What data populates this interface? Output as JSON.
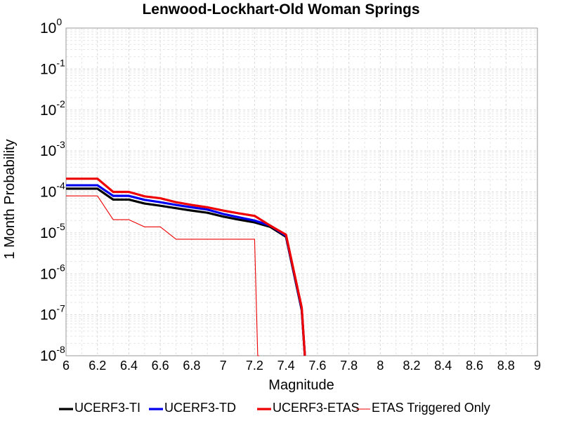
{
  "chart_data": {
    "type": "line",
    "title": "Lenwood-Lockhart-Old Woman Springs",
    "xlabel": "Magnitude",
    "ylabel": "1 Month Probability",
    "xlim": [
      6,
      9
    ],
    "ylim": [
      1e-08,
      1
    ],
    "yscale": "log",
    "grid": true,
    "legend_position": "bottom",
    "x_ticks": [
      "6",
      "6.2",
      "6.4",
      "6.6",
      "6.8",
      "7",
      "7.2",
      "7.4",
      "7.6",
      "7.8",
      "8",
      "8.2",
      "8.4",
      "8.6",
      "8.8",
      "9"
    ],
    "y_ticks": [
      {
        "base": "10",
        "exp": "0"
      },
      {
        "base": "10",
        "exp": "-1"
      },
      {
        "base": "10",
        "exp": "-2"
      },
      {
        "base": "10",
        "exp": "-3"
      },
      {
        "base": "10",
        "exp": "-4"
      },
      {
        "base": "10",
        "exp": "-5"
      },
      {
        "base": "10",
        "exp": "-6"
      },
      {
        "base": "10",
        "exp": "-7"
      },
      {
        "base": "10",
        "exp": "-8"
      }
    ],
    "series": [
      {
        "name": "UCERF3-TI",
        "color": "#000000",
        "style": "thick",
        "x": [
          6.0,
          6.2,
          6.3,
          6.4,
          6.5,
          6.6,
          6.7,
          6.8,
          6.9,
          7.0,
          7.1,
          7.2,
          7.3,
          7.4,
          7.5,
          7.52
        ],
        "y": [
          0.00012,
          0.00012,
          6.5e-05,
          6.5e-05,
          5.2e-05,
          4.6e-05,
          4e-05,
          3.5e-05,
          3.1e-05,
          2.5e-05,
          2.1e-05,
          1.8e-05,
          1.4e-05,
          8e-06,
          1.3e-07,
          1e-08
        ]
      },
      {
        "name": "UCERF3-TD",
        "color": "#0000ee",
        "style": "thick",
        "x": [
          6.0,
          6.2,
          6.3,
          6.4,
          6.5,
          6.6,
          6.7,
          6.8,
          6.9,
          7.0,
          7.1,
          7.2,
          7.3,
          7.4,
          7.5,
          7.52
        ],
        "y": [
          0.000145,
          0.000145,
          8e-05,
          8e-05,
          6.4e-05,
          5.6e-05,
          4.8e-05,
          4.2e-05,
          3.7e-05,
          2.9e-05,
          2.4e-05,
          2e-05,
          1.5e-05,
          8.5e-06,
          1.4e-07,
          1e-08
        ]
      },
      {
        "name": "UCERF3-ETAS",
        "color": "#ee0000",
        "style": "thick",
        "x": [
          6.0,
          6.2,
          6.3,
          6.4,
          6.5,
          6.6,
          6.7,
          6.8,
          6.9,
          7.0,
          7.1,
          7.2,
          7.3,
          7.4,
          7.5,
          7.52
        ],
        "y": [
          0.00021,
          0.00021,
          0.0001,
          0.0001,
          7.8e-05,
          7e-05,
          5.6e-05,
          4.8e-05,
          4.2e-05,
          3.5e-05,
          3e-05,
          2.6e-05,
          1.5e-05,
          9e-06,
          1.5e-07,
          1e-08
        ]
      },
      {
        "name": "ETAS Triggered Only",
        "color": "#ee0000",
        "style": "thin",
        "x": [
          6.0,
          6.2,
          6.3,
          6.4,
          6.5,
          6.6,
          6.7,
          6.8,
          6.9,
          7.0,
          7.1,
          7.2,
          7.22,
          7.23
        ],
        "y": [
          8e-05,
          8e-05,
          2.1e-05,
          2.1e-05,
          1.4e-05,
          1.4e-05,
          7e-06,
          7e-06,
          7e-06,
          7e-06,
          7e-06,
          7e-06,
          1e-08,
          1e-08
        ]
      }
    ]
  }
}
